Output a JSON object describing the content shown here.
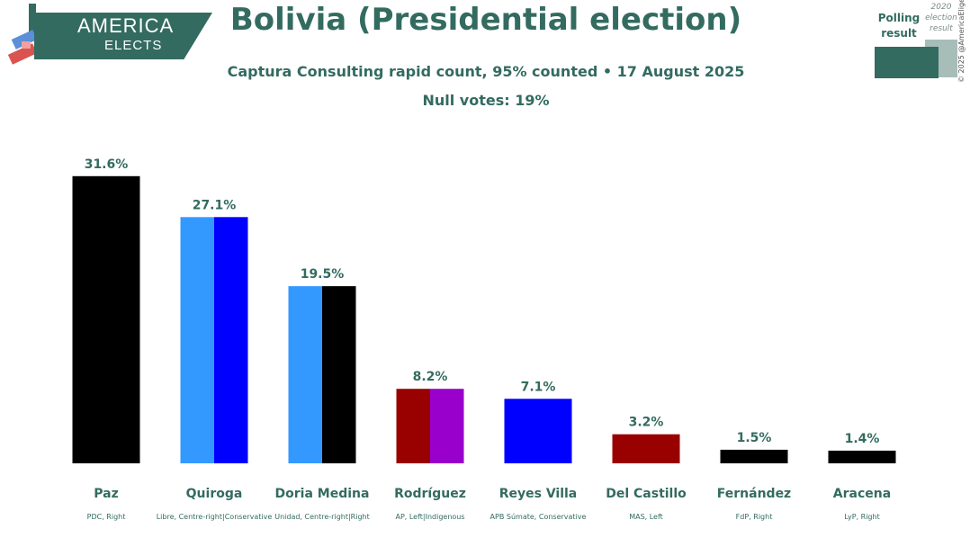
{
  "header": {
    "logo_line1": "AMERICA",
    "logo_line2": "ELECTS",
    "title": "Bolivia (Presidential election)",
    "subtitle": "Captura Consulting rapid count, 95% counted • 17 August 2025",
    "subtitle2": "Null votes: 19%"
  },
  "legend": {
    "polling_label": "Polling result",
    "previous_label": "2020 election result",
    "copyright": "© 2025 @AmericaElige",
    "polling_color": "#336b60",
    "previous_color": "#a7bdb7"
  },
  "chart_data": {
    "type": "bar",
    "ylim": [
      0,
      32
    ],
    "categories": [
      "Paz",
      "Quiroga",
      "Doria Medina",
      "Rodríguez",
      "Reyes Villa",
      "Del Castillo",
      "Fernández",
      "Aracena"
    ],
    "parties": [
      "PDC, Right",
      "Libre, Centre-right|Conservative",
      "Unidad, Centre-right|Right",
      "AP, Left|Indigenous",
      "APB Súmate, Conservative",
      "MAS, Left",
      "FdP, Right",
      "LyP, Right"
    ],
    "values": [
      31.6,
      27.1,
      19.5,
      8.2,
      7.1,
      3.2,
      1.5,
      1.4
    ],
    "value_labels": [
      "31.6%",
      "27.1%",
      "19.5%",
      "8.2%",
      "7.1%",
      "3.2%",
      "1.5%",
      "1.4%"
    ],
    "bar_colors": [
      [
        "#000000"
      ],
      [
        "#3399ff",
        "#0000ff"
      ],
      [
        "#3399ff",
        "#000000"
      ],
      [
        "#990000",
        "#9900cc"
      ],
      [
        "#0000ff"
      ],
      [
        "#990000"
      ],
      [
        "#000000"
      ],
      [
        "#000000"
      ]
    ]
  }
}
